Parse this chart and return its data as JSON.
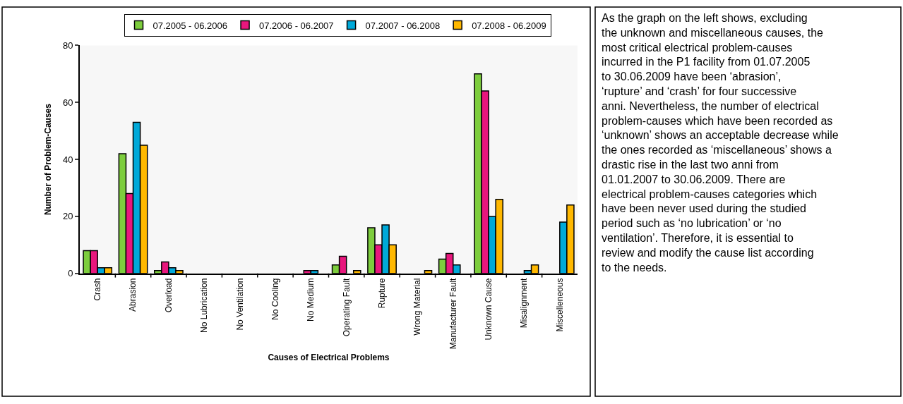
{
  "chart_data": [
    {
      "type": "bar",
      "xlabel": "Causes of Electrical Problems",
      "ylabel": "Number of Problem-Causes",
      "categories": [
        "Crash",
        "Abrasion",
        "Overload",
        "No Lubrication",
        "No Ventilation",
        "No Cooling",
        "No Medium",
        "Operating Fault",
        "Rupture",
        "Wrong Material",
        "Manufacturer Fault",
        "Unknown Cause",
        "Misalignment",
        "Miscelleneous"
      ],
      "series": [
        {
          "name": "07.2005 - 06.2006",
          "color": "#7dcd3d",
          "values": [
            8,
            42,
            1,
            null,
            null,
            null,
            null,
            3,
            16,
            null,
            5,
            70,
            null,
            null
          ]
        },
        {
          "name": "07.2006 - 06.2007",
          "color": "#e8177d",
          "values": [
            8,
            28,
            4,
            null,
            null,
            null,
            1,
            6,
            10,
            null,
            7,
            64,
            null,
            null
          ]
        },
        {
          "name": "07.2007 - 06.2008",
          "color": "#00a9d9",
          "values": [
            2,
            53,
            2,
            null,
            null,
            null,
            1,
            null,
            17,
            null,
            3,
            20,
            1,
            18
          ]
        },
        {
          "name": "07.2008 - 06.2009",
          "color": "#ffb800",
          "values": [
            2,
            45,
            1,
            null,
            null,
            null,
            null,
            1,
            10,
            1,
            null,
            26,
            3,
            24
          ]
        }
      ],
      "ylim": [
        0,
        80
      ],
      "yticks": [
        0,
        20,
        40,
        60,
        80
      ],
      "grid": "x",
      "legend": "top"
    },
    {
      "type": "other",
      "annotations": [
        "As the graph on the left shows, excluding the unknown and miscellaneous causes, the most critical electrical problem-causes incurred in the P1 facility from 01.07.2005 to 30.06.2009 have been ‘abrasion’, ‘rupture’ and ‘crash’ for four successive anni. Nevertheless, the number of electrical problem-causes which have been recorded as ‘unknown’ shows an acceptable decrease while the ones recorded as ‘miscellaneous’ shows a drastic rise in the last two anni from 01.01.2007 to 30.06.2009. There are electrical problem-causes categories which have been never used during the studied period such as ‘no lubrication’ or ‘no ventilation’. Therefore, it is essential to review and modify the cause list according to the needs."
      ]
    }
  ]
}
